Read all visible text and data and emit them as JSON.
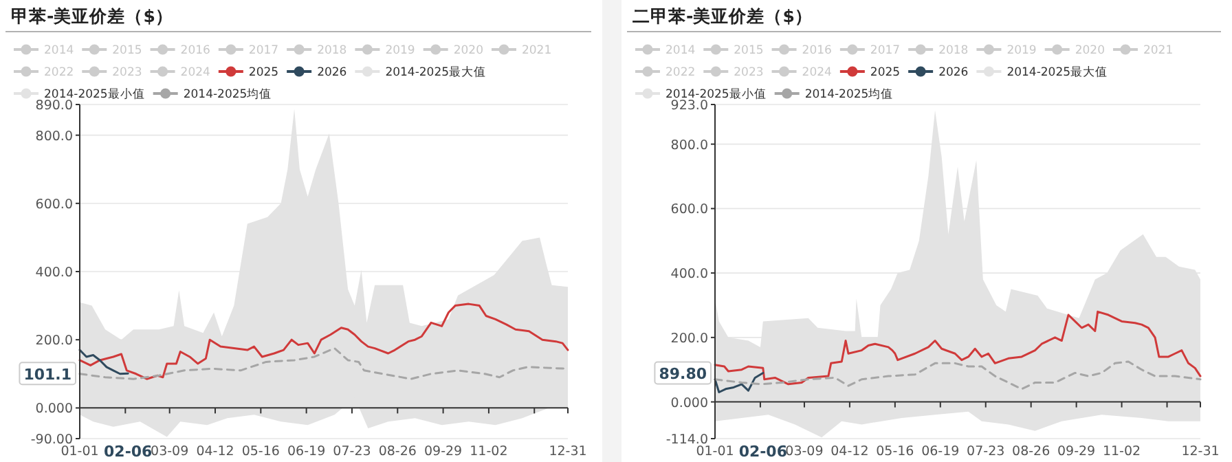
{
  "chart_data": [
    {
      "type": "line",
      "title": "甲苯-美亚价差（$）",
      "legend": "top",
      "grid": "y",
      "xlim": [
        "--01-01",
        "--12-31"
      ],
      "xticks": [
        {
          "value": "--01-01",
          "label": "01-01"
        },
        {
          "value": "--02-04",
          "label": null
        },
        {
          "value": "--03-09",
          "label": "03-09"
        },
        {
          "value": "--04-12",
          "label": "04-12"
        },
        {
          "value": "--05-16",
          "label": "05-16"
        },
        {
          "value": "--06-19",
          "label": "06-19"
        },
        {
          "value": "--07-23",
          "label": "07-23"
        },
        {
          "value": "--08-26",
          "label": "08-26"
        },
        {
          "value": "--09-29",
          "label": "09-29"
        },
        {
          "value": "--11-02",
          "label": "11-02"
        },
        {
          "value": "--12-06",
          "label": null
        },
        {
          "value": "--12-31",
          "label": "12-31"
        }
      ],
      "ylim": [
        -90,
        890
      ],
      "yticks": [
        {
          "value": -90,
          "label": "-90.00"
        },
        {
          "value": 0,
          "label": "0.000"
        },
        {
          "value": 200,
          "label": "200.0"
        },
        {
          "value": 400,
          "label": "400.0"
        },
        {
          "value": 600,
          "label": "600.0"
        },
        {
          "value": 800,
          "label": "800.0"
        },
        {
          "value": 890,
          "label": "890.0"
        }
      ],
      "annotations": [
        {
          "text": "101.1",
          "y": 101.1
        },
        "02-06"
      ],
      "series": [
        {
          "name": "2014",
          "color": "#cccccc"
        },
        {
          "name": "2015",
          "color": "#cccccc"
        },
        {
          "name": "2016",
          "color": "#cccccc"
        },
        {
          "name": "2017",
          "color": "#cccccc"
        },
        {
          "name": "2018",
          "color": "#cccccc"
        },
        {
          "name": "2019",
          "color": "#cccccc"
        },
        {
          "name": "2020",
          "color": "#cccccc"
        },
        {
          "name": "2021",
          "color": "#cccccc"
        },
        {
          "name": "2022",
          "color": "#cccccc"
        },
        {
          "name": "2023",
          "color": "#cccccc"
        },
        {
          "name": "2024",
          "color": "#cccccc"
        },
        {
          "name": "2025",
          "color": "#d03a3a",
          "x": [
            "--01-01",
            "--01-09",
            "--01-16",
            "--01-26",
            "--02-01",
            "--02-05",
            "--02-12",
            "--02-20",
            "--02-28",
            "--03-04",
            "--03-07",
            "--03-14",
            "--03-17",
            "--03-24",
            "--03-30",
            "--04-05",
            "--04-08",
            "--04-16",
            "--04-26",
            "--05-06",
            "--05-11",
            "--05-17",
            "--05-26",
            "--06-02",
            "--06-08",
            "--06-13",
            "--06-20",
            "--06-25",
            "--06-30",
            "--07-07",
            "--07-15",
            "--07-20",
            "--07-25",
            "--07-30",
            "--08-04",
            "--08-09",
            "--08-19",
            "--08-24",
            "--09-03",
            "--09-08",
            "--09-13",
            "--09-20",
            "--09-28",
            "--10-03",
            "--10-08",
            "--10-18",
            "--10-26",
            "--10-31",
            "--11-07",
            "--11-15",
            "--11-22",
            "--12-02",
            "--12-12",
            "--12-22",
            "--12-27",
            "--12-31"
          ],
          "values": [
            140,
            125,
            140,
            150,
            158,
            110,
            100,
            85,
            95,
            90,
            130,
            130,
            165,
            150,
            130,
            145,
            200,
            180,
            175,
            170,
            180,
            150,
            160,
            170,
            200,
            185,
            190,
            160,
            200,
            215,
            235,
            230,
            215,
            195,
            180,
            175,
            160,
            170,
            195,
            200,
            210,
            250,
            240,
            280,
            300,
            305,
            300,
            270,
            260,
            245,
            230,
            225,
            200,
            195,
            190,
            170
          ]
        },
        {
          "name": "2026",
          "color": "#2f4a5e",
          "x": [
            "--01-01",
            "--01-06",
            "--01-11",
            "--01-16",
            "--01-21",
            "--01-26",
            "--01-31",
            "--02-06"
          ],
          "values": [
            170,
            150,
            155,
            140,
            120,
            110,
            100,
            101.1
          ]
        },
        {
          "name": "2014-2025最大值",
          "type": "area",
          "color": "#e3e3e3",
          "x": [
            "--01-01",
            "--01-10",
            "--01-20",
            "--02-01",
            "--02-10",
            "--03-01",
            "--03-12",
            "--03-16",
            "--03-20",
            "--04-03",
            "--04-11",
            "--04-17",
            "--04-26",
            "--05-06",
            "--05-21",
            "--05-31",
            "--06-05",
            "--06-10",
            "--06-14",
            "--06-20",
            "--06-26",
            "--07-06",
            "--07-13",
            "--07-20",
            "--07-25",
            "--07-30",
            "--08-03",
            "--08-09",
            "--08-30",
            "--09-04",
            "--09-13",
            "--10-03",
            "--10-10",
            "--11-06",
            "--11-27",
            "--12-10",
            "--12-15",
            "--12-19",
            "--12-31"
          ],
          "values": [
            310,
            300,
            230,
            200,
            230,
            230,
            240,
            345,
            240,
            220,
            280,
            210,
            300,
            540,
            560,
            600,
            700,
            877,
            700,
            620,
            700,
            805,
            600,
            348,
            300,
            405,
            250,
            360,
            360,
            250,
            240,
            260,
            330,
            390,
            490,
            500,
            420,
            360,
            355
          ]
        },
        {
          "name": "2014-2025最小值",
          "type": "area",
          "color": "#e3e3e3",
          "x": [
            "--01-01",
            "--01-11",
            "--01-26",
            "--02-15",
            "--03-07",
            "--03-17",
            "--04-06",
            "--04-21",
            "--05-11",
            "--05-31",
            "--06-20",
            "--07-10",
            "--07-25",
            "--08-04",
            "--08-19",
            "--09-08",
            "--09-28",
            "--10-18",
            "--11-07",
            "--11-27",
            "--12-17",
            "--12-31"
          ],
          "values": [
            -20,
            -40,
            -55,
            -40,
            -85,
            -40,
            -50,
            -30,
            -20,
            -40,
            -50,
            -20,
            30,
            -60,
            -40,
            -30,
            -50,
            -40,
            -50,
            -30,
            0,
            20
          ]
        },
        {
          "name": "2014-2025均值",
          "color": "#a6a6a6",
          "line_style": "dashed",
          "x": [
            "--01-01",
            "--01-20",
            "--02-10",
            "--03-01",
            "--03-20",
            "--04-10",
            "--05-01",
            "--05-20",
            "--06-10",
            "--06-25",
            "--07-10",
            "--07-20",
            "--07-28",
            "--08-01",
            "--08-15",
            "--09-05",
            "--09-20",
            "--10-10",
            "--10-30",
            "--11-10",
            "--11-20",
            "--12-01",
            "--12-31"
          ],
          "values": [
            100,
            90,
            85,
            95,
            110,
            115,
            110,
            135,
            140,
            150,
            175,
            140,
            135,
            110,
            100,
            85,
            100,
            110,
            100,
            90,
            110,
            120,
            115
          ]
        }
      ]
    },
    {
      "type": "line",
      "title": "二甲苯-美亚价差（$）",
      "legend": "top",
      "grid": "y",
      "xlim": [
        "--01-01",
        "--12-31"
      ],
      "xticks": [
        {
          "value": "--01-01",
          "label": "01-01"
        },
        {
          "value": "--02-04",
          "label": null
        },
        {
          "value": "--03-09",
          "label": "03-09"
        },
        {
          "value": "--04-12",
          "label": "04-12"
        },
        {
          "value": "--05-16",
          "label": "05-16"
        },
        {
          "value": "--06-19",
          "label": "06-19"
        },
        {
          "value": "--07-23",
          "label": "07-23"
        },
        {
          "value": "--08-26",
          "label": "08-26"
        },
        {
          "value": "--09-29",
          "label": "09-29"
        },
        {
          "value": "--11-02",
          "label": "11-02"
        },
        {
          "value": "--12-06",
          "label": null
        },
        {
          "value": "--12-31",
          "label": "12-31"
        }
      ],
      "ylim": [
        -114,
        923
      ],
      "yticks": [
        {
          "value": -114,
          "label": "-114.0"
        },
        {
          "value": 0,
          "label": "0.000"
        },
        {
          "value": 200,
          "label": "200.0"
        },
        {
          "value": 400,
          "label": "400.0"
        },
        {
          "value": 600,
          "label": "600.0"
        },
        {
          "value": 800,
          "label": "800.0"
        },
        {
          "value": 923,
          "label": "923.0"
        }
      ],
      "annotations": [
        {
          "text": "89.80",
          "y": 89.8
        },
        "02-06"
      ],
      "series": [
        {
          "name": "2014",
          "color": "#cccccc"
        },
        {
          "name": "2015",
          "color": "#cccccc"
        },
        {
          "name": "2016",
          "color": "#cccccc"
        },
        {
          "name": "2017",
          "color": "#cccccc"
        },
        {
          "name": "2018",
          "color": "#cccccc"
        },
        {
          "name": "2019",
          "color": "#cccccc"
        },
        {
          "name": "2020",
          "color": "#cccccc"
        },
        {
          "name": "2021",
          "color": "#cccccc"
        },
        {
          "name": "2022",
          "color": "#cccccc"
        },
        {
          "name": "2023",
          "color": "#cccccc"
        },
        {
          "name": "2024",
          "color": "#cccccc"
        },
        {
          "name": "2025",
          "color": "#d03a3a",
          "x": [
            "--01-01",
            "--01-08",
            "--01-11",
            "--01-21",
            "--01-26",
            "--02-06",
            "--02-07",
            "--02-15",
            "--02-25",
            "--03-07",
            "--03-12",
            "--03-27",
            "--03-29",
            "--04-06",
            "--04-09",
            "--04-11",
            "--04-21",
            "--04-26",
            "--05-01",
            "--05-11",
            "--05-14",
            "--05-16",
            "--05-18",
            "--05-31",
            "--06-10",
            "--06-15",
            "--06-20",
            "--06-30",
            "--07-05",
            "--07-10",
            "--07-15",
            "--07-20",
            "--07-25",
            "--07-30",
            "--08-09",
            "--08-19",
            "--08-29",
            "--09-03",
            "--09-13",
            "--09-18",
            "--09-23",
            "--09-28",
            "--10-03",
            "--10-08",
            "--10-13",
            "--10-15",
            "--10-23",
            "--11-02",
            "--11-12",
            "--11-17",
            "--11-22",
            "--11-27",
            "--11-30",
            "--12-07",
            "--12-12",
            "--12-17",
            "--12-22",
            "--12-27",
            "--12-31"
          ],
          "values": [
            115,
            110,
            95,
            100,
            110,
            105,
            70,
            75,
            55,
            60,
            75,
            80,
            120,
            125,
            190,
            150,
            160,
            175,
            180,
            170,
            160,
            150,
            130,
            150,
            170,
            190,
            165,
            150,
            130,
            140,
            165,
            140,
            150,
            120,
            135,
            140,
            160,
            180,
            200,
            190,
            270,
            250,
            230,
            240,
            220,
            280,
            270,
            250,
            245,
            240,
            230,
            200,
            140,
            140,
            150,
            160,
            120,
            105,
            80
          ]
        },
        {
          "name": "2026",
          "color": "#2f4a5e",
          "x": [
            "--01-01",
            "--01-04",
            "--01-09",
            "--01-15",
            "--01-21",
            "--01-26",
            "--01-31",
            "--02-06"
          ],
          "values": [
            70,
            30,
            40,
            45,
            55,
            35,
            75,
            89.8
          ]
        },
        {
          "name": "2014-2025最大值",
          "type": "area",
          "color": "#e3e3e3",
          "x": [
            "--01-01",
            "--01-04",
            "--01-11",
            "--01-26",
            "--02-04",
            "--02-06",
            "--03-12",
            "--03-19",
            "--04-09",
            "--04-16",
            "--04-17",
            "--04-21",
            "--05-03",
            "--05-05",
            "--05-13",
            "--05-18",
            "--05-27",
            "--06-03",
            "--06-10",
            "--06-15",
            "--06-20",
            "--06-25",
            "--07-02",
            "--07-07",
            "--07-16",
            "--07-21",
            "--07-31",
            "--08-07",
            "--08-11",
            "--08-31",
            "--09-07",
            "--10-01",
            "--10-13",
            "--10-22",
            "--11-01",
            "--11-18",
            "--11-28",
            "--12-05",
            "--12-15",
            "--12-27",
            "--12-31"
          ],
          "values": [
            320,
            250,
            200,
            190,
            170,
            250,
            260,
            230,
            220,
            220,
            320,
            200,
            200,
            300,
            350,
            400,
            410,
            500,
            700,
            905,
            760,
            520,
            730,
            560,
            750,
            380,
            300,
            280,
            350,
            330,
            290,
            260,
            380,
            400,
            470,
            520,
            450,
            450,
            420,
            410,
            380
          ]
        },
        {
          "name": "2014-2025最小值",
          "type": "area",
          "color": "#e3e3e3",
          "x": [
            "--01-01",
            "--01-21",
            "--02-10",
            "--03-02",
            "--03-22",
            "--04-06",
            "--04-21",
            "--05-21",
            "--06-15",
            "--07-10",
            "--07-20",
            "--08-09",
            "--08-29",
            "--09-18",
            "--10-18",
            "--11-17",
            "--12-07",
            "--12-31"
          ],
          "values": [
            -60,
            -50,
            -40,
            -70,
            -110,
            -60,
            -70,
            -50,
            -40,
            -30,
            -60,
            -70,
            -90,
            -60,
            -40,
            -50,
            -60,
            -60
          ]
        },
        {
          "name": "2014-2025均值",
          "color": "#a6a6a6",
          "line_style": "dashed",
          "x": [
            "--01-01",
            "--01-21",
            "--02-05",
            "--02-20",
            "--03-12",
            "--04-01",
            "--04-11",
            "--04-21",
            "--05-11",
            "--05-31",
            "--06-15",
            "--06-30",
            "--07-10",
            "--07-20",
            "--07-30",
            "--08-09",
            "--08-19",
            "--08-29",
            "--09-13",
            "--09-28",
            "--10-08",
            "--10-18",
            "--10-28",
            "--11-07",
            "--11-17",
            "--11-27",
            "--12-12",
            "--12-31"
          ],
          "values": [
            70,
            60,
            55,
            60,
            70,
            75,
            50,
            70,
            80,
            85,
            120,
            120,
            110,
            110,
            80,
            60,
            40,
            60,
            60,
            90,
            80,
            90,
            120,
            125,
            100,
            80,
            80,
            70
          ]
        }
      ]
    }
  ]
}
